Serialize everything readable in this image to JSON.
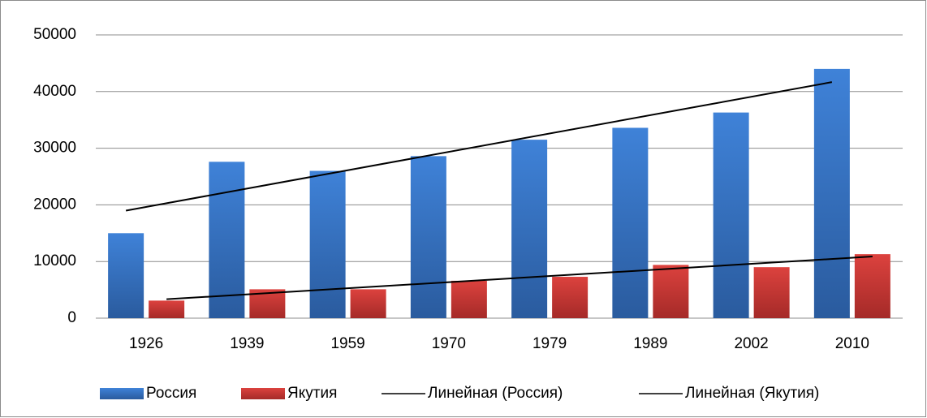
{
  "chart_data": {
    "type": "bar",
    "categories": [
      "1926",
      "1939",
      "1959",
      "1970",
      "1979",
      "1989",
      "2002",
      "2010"
    ],
    "series": [
      {
        "name": "Россия",
        "color": "#3b7bd0",
        "values": [
          15000,
          27600,
          26000,
          28600,
          31500,
          33600,
          36300,
          44000
        ]
      },
      {
        "name": "Якутия",
        "color": "#d23a36",
        "values": [
          3100,
          5100,
          5100,
          6600,
          7300,
          9400,
          9000,
          11300
        ]
      }
    ],
    "trendlines": [
      {
        "name": "Линейная (Россия)",
        "series": 0,
        "color": "#000000"
      },
      {
        "name": "Линейная (Якутия)",
        "series": 1,
        "color": "#000000"
      }
    ],
    "ylim": [
      0,
      50000
    ],
    "yticks": [
      0,
      10000,
      20000,
      30000,
      40000,
      50000
    ],
    "grid": true,
    "legend": "bottom"
  }
}
